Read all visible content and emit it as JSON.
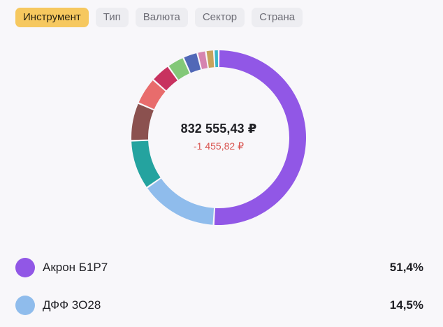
{
  "filters": {
    "tabs": [
      {
        "label": "Инструмент",
        "active": true
      },
      {
        "label": "Тип",
        "active": false
      },
      {
        "label": "Валюта",
        "active": false
      },
      {
        "label": "Сектор",
        "active": false
      },
      {
        "label": "Страна",
        "active": false
      }
    ]
  },
  "portfolio": {
    "total": "832 555,43 ₽",
    "change": "-1 455,82 ₽"
  },
  "chart_data": {
    "type": "pie",
    "style": "donut",
    "slices": [
      {
        "name": "Акрон Б1Р7",
        "value": 51.4,
        "color": "#9157e6"
      },
      {
        "name": "ДФФ 3О28",
        "value": 14.5,
        "color": "#8fbcec"
      },
      {
        "name": "",
        "value": 9.2,
        "color": "#24a39f"
      },
      {
        "name": "",
        "value": 7.1,
        "color": "#8b514f"
      },
      {
        "name": "",
        "value": 5.1,
        "color": "#e86c6c"
      },
      {
        "name": "",
        "value": 3.7,
        "color": "#c8325f"
      },
      {
        "name": "",
        "value": 3.2,
        "color": "#83c878"
      },
      {
        "name": "",
        "value": 2.7,
        "color": "#5168b7"
      },
      {
        "name": "",
        "value": 1.6,
        "color": "#d684b0"
      },
      {
        "name": "",
        "value": 1.5,
        "color": "#c7a35c"
      },
      {
        "name": "",
        "value": 0.9,
        "color": "#39b6c6"
      }
    ]
  },
  "legend": [
    {
      "name": "Акрон Б1Р7",
      "value": "51,4%",
      "color": "#9157e6"
    },
    {
      "name": "ДФФ 3О28",
      "value": "14,5%",
      "color": "#8fbcec"
    }
  ]
}
